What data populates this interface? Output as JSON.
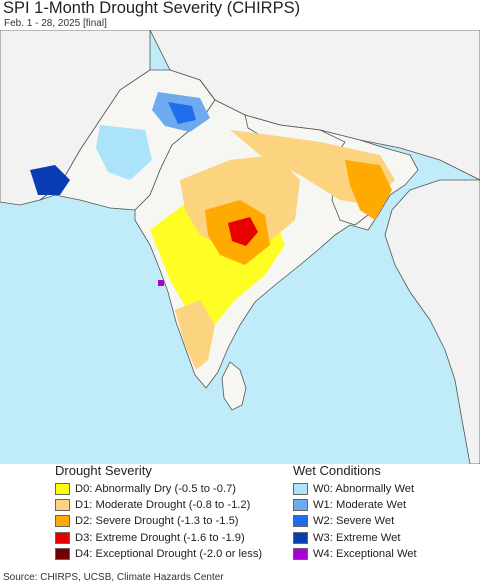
{
  "header": {
    "title": "SPI 1-Month Drought Severity (CHIRPS)",
    "subtitle": "Feb. 1 - 28, 2025 [final]"
  },
  "map": {
    "region": "South Asia",
    "colors": {
      "land": "#f6f6f3",
      "water": "#bfecf8",
      "outside_land": "#f2f2f2",
      "border": "#555555"
    }
  },
  "legend": {
    "drought": {
      "heading": "Drought Severity",
      "items": [
        {
          "code": "D0",
          "label": "D0: Abnormally Dry (-0.5 to -0.7)",
          "color": "#ffff00"
        },
        {
          "code": "D1",
          "label": "D1: Moderate Drought (-0.8 to -1.2)",
          "color": "#fcd37f"
        },
        {
          "code": "D2",
          "label": "D2: Severe Drought (-1.3 to -1.5)",
          "color": "#ffaa00"
        },
        {
          "code": "D3",
          "label": "D3: Extreme Drought (-1.6 to -1.9)",
          "color": "#e60000"
        },
        {
          "code": "D4",
          "label": "D4: Exceptional Drought (-2.0 or less)",
          "color": "#730000"
        }
      ]
    },
    "wet": {
      "heading": "Wet Conditions",
      "items": [
        {
          "code": "W0",
          "label": "W0: Abnormally Wet",
          "color": "#aae3fa"
        },
        {
          "code": "W1",
          "label": "W1: Moderate Wet",
          "color": "#6eaaf0"
        },
        {
          "code": "W2",
          "label": "W2: Severe Wet",
          "color": "#1e6eeb"
        },
        {
          "code": "W3",
          "label": "W3: Extreme Wet",
          "color": "#0a3cb4"
        },
        {
          "code": "W4",
          "label": "W4: Exceptional Wet",
          "color": "#aa00dc"
        }
      ]
    }
  },
  "footer": {
    "source": "Source: CHIRPS, UCSB, Climate Hazards Center"
  }
}
